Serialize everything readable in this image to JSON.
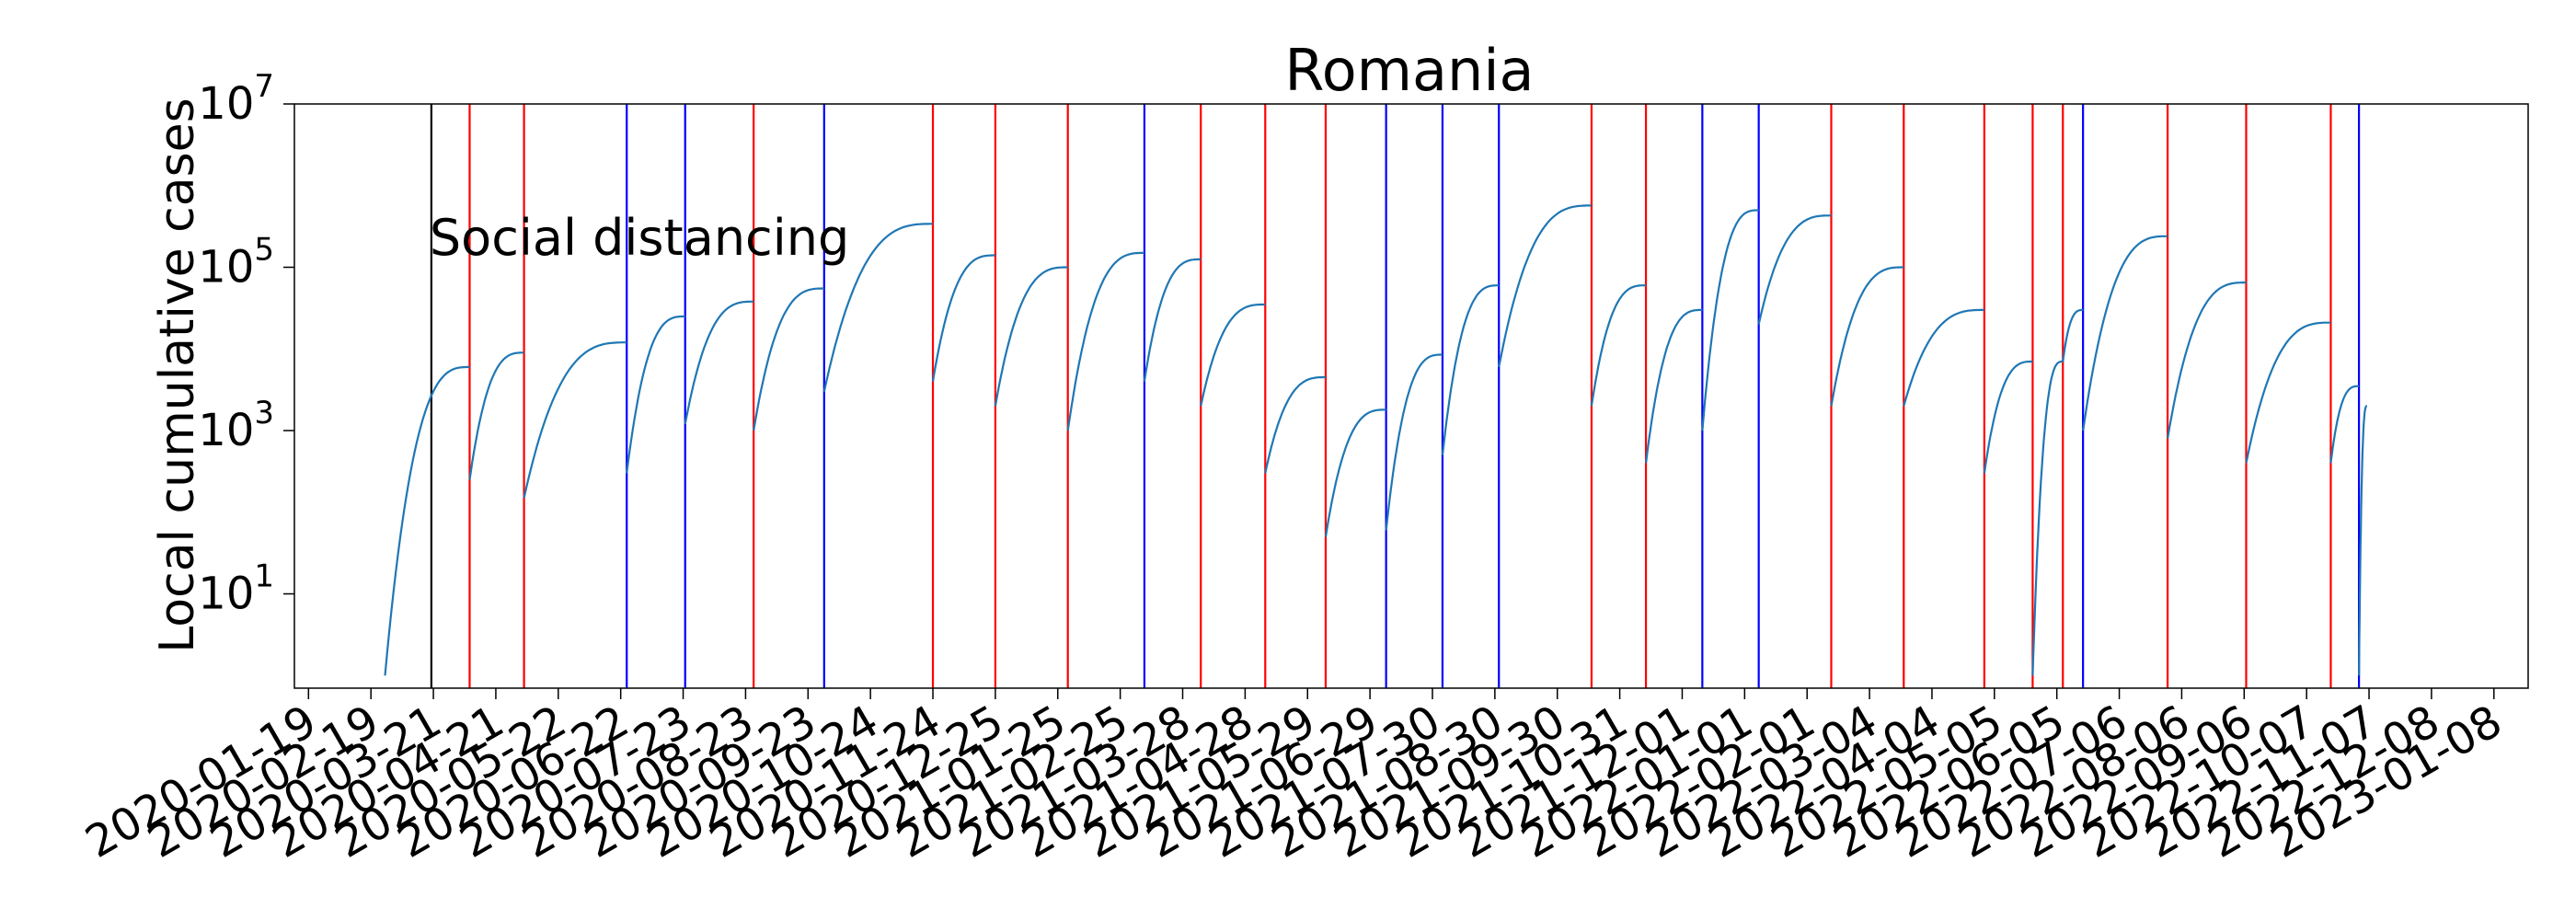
{
  "chart_data": {
    "type": "line",
    "title": "Romania",
    "xlabel": "",
    "ylabel": "Local cumulative cases",
    "yscale": "log",
    "ylim": [
      0.7,
      10000000
    ],
    "xlim": [
      "2020-01-12",
      "2023-01-25"
    ],
    "y_ticks": [
      {
        "value": 10,
        "base": "10",
        "exp": "1"
      },
      {
        "value": 1000,
        "base": "10",
        "exp": "3"
      },
      {
        "value": 100000,
        "base": "10",
        "exp": "5"
      },
      {
        "value": 10000000,
        "base": "10",
        "exp": "7"
      }
    ],
    "x_tick_labels": [
      "2020-01-19",
      "2020-02-19",
      "2020-03-21",
      "2020-04-21",
      "2020-05-22",
      "2020-06-22",
      "2020-07-23",
      "2020-08-23",
      "2020-09-23",
      "2020-10-24",
      "2020-11-24",
      "2020-12-25",
      "2021-01-25",
      "2021-02-25",
      "2021-03-28",
      "2021-04-28",
      "2021-05-29",
      "2021-06-29",
      "2021-07-30",
      "2021-08-30",
      "2021-09-30",
      "2021-10-31",
      "2021-12-01",
      "2022-01-01",
      "2022-02-01",
      "2022-03-04",
      "2022-04-04",
      "2022-05-05",
      "2022-06-05",
      "2022-07-06",
      "2022-08-06",
      "2022-09-06",
      "2022-10-07",
      "2022-11-07",
      "2022-12-08",
      "2023-01-08"
    ],
    "legend": "none",
    "grid": false,
    "annotations": [
      {
        "text": "Social distancing",
        "date": "2020-03-20"
      }
    ],
    "vertical_lines": [
      {
        "date": "2020-03-20",
        "color": "#000000"
      },
      {
        "date": "2020-04-08",
        "color": "#ff0000"
      },
      {
        "date": "2020-05-05",
        "color": "#ff0000"
      },
      {
        "date": "2020-06-25",
        "color": "#0000ff"
      },
      {
        "date": "2020-07-24",
        "color": "#0000ff"
      },
      {
        "date": "2020-08-27",
        "color": "#ff0000"
      },
      {
        "date": "2020-10-01",
        "color": "#0000ff"
      },
      {
        "date": "2020-11-24",
        "color": "#ff0000"
      },
      {
        "date": "2020-12-25",
        "color": "#ff0000"
      },
      {
        "date": "2021-01-30",
        "color": "#ff0000"
      },
      {
        "date": "2021-03-09",
        "color": "#0000ff"
      },
      {
        "date": "2021-04-06",
        "color": "#ff0000"
      },
      {
        "date": "2021-05-08",
        "color": "#ff0000"
      },
      {
        "date": "2021-06-07",
        "color": "#ff0000"
      },
      {
        "date": "2021-07-07",
        "color": "#0000ff"
      },
      {
        "date": "2021-08-04",
        "color": "#0000ff"
      },
      {
        "date": "2021-09-01",
        "color": "#0000ff"
      },
      {
        "date": "2021-10-17",
        "color": "#ff0000"
      },
      {
        "date": "2021-11-13",
        "color": "#ff0000"
      },
      {
        "date": "2021-12-11",
        "color": "#0000ff"
      },
      {
        "date": "2022-01-08",
        "color": "#0000ff"
      },
      {
        "date": "2022-02-13",
        "color": "#ff0000"
      },
      {
        "date": "2022-03-21",
        "color": "#ff0000"
      },
      {
        "date": "2022-04-30",
        "color": "#ff0000"
      },
      {
        "date": "2022-05-24",
        "color": "#ff0000"
      },
      {
        "date": "2022-06-08",
        "color": "#ff0000"
      },
      {
        "date": "2022-06-18",
        "color": "#0000ff"
      },
      {
        "date": "2022-07-30",
        "color": "#ff0000"
      },
      {
        "date": "2022-09-07",
        "color": "#ff0000"
      },
      {
        "date": "2022-10-19",
        "color": "#ff0000"
      },
      {
        "date": "2022-11-02",
        "color": "#0000ff"
      }
    ],
    "series": [
      {
        "color": "#1f77b4",
        "segments": [
          {
            "start": "2020-02-26",
            "end": "2020-04-08",
            "y_start": 1,
            "y_end": 6000
          },
          {
            "start": "2020-04-08",
            "end": "2020-05-05",
            "y_start": 250,
            "y_end": 9000
          },
          {
            "start": "2020-05-05",
            "end": "2020-06-25",
            "y_start": 150,
            "y_end": 12000
          },
          {
            "start": "2020-06-25",
            "end": "2020-07-24",
            "y_start": 300,
            "y_end": 25000
          },
          {
            "start": "2020-07-24",
            "end": "2020-08-27",
            "y_start": 1200,
            "y_end": 38000
          },
          {
            "start": "2020-08-27",
            "end": "2020-10-01",
            "y_start": 1000,
            "y_end": 55000
          },
          {
            "start": "2020-10-01",
            "end": "2020-11-24",
            "y_start": 3000,
            "y_end": 340000
          },
          {
            "start": "2020-11-24",
            "end": "2020-12-25",
            "y_start": 4000,
            "y_end": 140000
          },
          {
            "start": "2020-12-25",
            "end": "2021-01-30",
            "y_start": 2000,
            "y_end": 100000
          },
          {
            "start": "2021-01-30",
            "end": "2021-03-09",
            "y_start": 1000,
            "y_end": 150000
          },
          {
            "start": "2021-03-09",
            "end": "2021-04-06",
            "y_start": 4000,
            "y_end": 125000
          },
          {
            "start": "2021-04-06",
            "end": "2021-05-08",
            "y_start": 2000,
            "y_end": 35000
          },
          {
            "start": "2021-05-08",
            "end": "2021-06-07",
            "y_start": 300,
            "y_end": 4500
          },
          {
            "start": "2021-06-07",
            "end": "2021-07-07",
            "y_start": 50,
            "y_end": 1800
          },
          {
            "start": "2021-07-07",
            "end": "2021-08-04",
            "y_start": 60,
            "y_end": 8500
          },
          {
            "start": "2021-08-04",
            "end": "2021-09-01",
            "y_start": 500,
            "y_end": 60000
          },
          {
            "start": "2021-09-01",
            "end": "2021-10-17",
            "y_start": 6000,
            "y_end": 570000
          },
          {
            "start": "2021-10-17",
            "end": "2021-11-13",
            "y_start": 2000,
            "y_end": 60000
          },
          {
            "start": "2021-11-13",
            "end": "2021-12-11",
            "y_start": 400,
            "y_end": 30000
          },
          {
            "start": "2021-12-11",
            "end": "2022-01-08",
            "y_start": 1000,
            "y_end": 500000
          },
          {
            "start": "2022-01-08",
            "end": "2022-02-13",
            "y_start": 20000,
            "y_end": 430000
          },
          {
            "start": "2022-02-13",
            "end": "2022-03-21",
            "y_start": 2000,
            "y_end": 100000
          },
          {
            "start": "2022-03-21",
            "end": "2022-04-30",
            "y_start": 2000,
            "y_end": 30000
          },
          {
            "start": "2022-04-30",
            "end": "2022-05-24",
            "y_start": 300,
            "y_end": 7000
          },
          {
            "start": "2022-05-24",
            "end": "2022-06-08",
            "y_start": 1,
            "y_end": 7000
          },
          {
            "start": "2022-06-08",
            "end": "2022-06-18",
            "y_start": 7000,
            "y_end": 30000
          },
          {
            "start": "2022-06-18",
            "end": "2022-07-30",
            "y_start": 1000,
            "y_end": 240000
          },
          {
            "start": "2022-07-30",
            "end": "2022-09-07",
            "y_start": 800,
            "y_end": 65000
          },
          {
            "start": "2022-09-07",
            "end": "2022-10-19",
            "y_start": 400,
            "y_end": 21000
          },
          {
            "start": "2022-10-19",
            "end": "2022-11-02",
            "y_start": 400,
            "y_end": 3500
          },
          {
            "start": "2022-11-02",
            "end": "2022-11-06",
            "y_start": 1,
            "y_end": 2000
          }
        ]
      }
    ]
  }
}
